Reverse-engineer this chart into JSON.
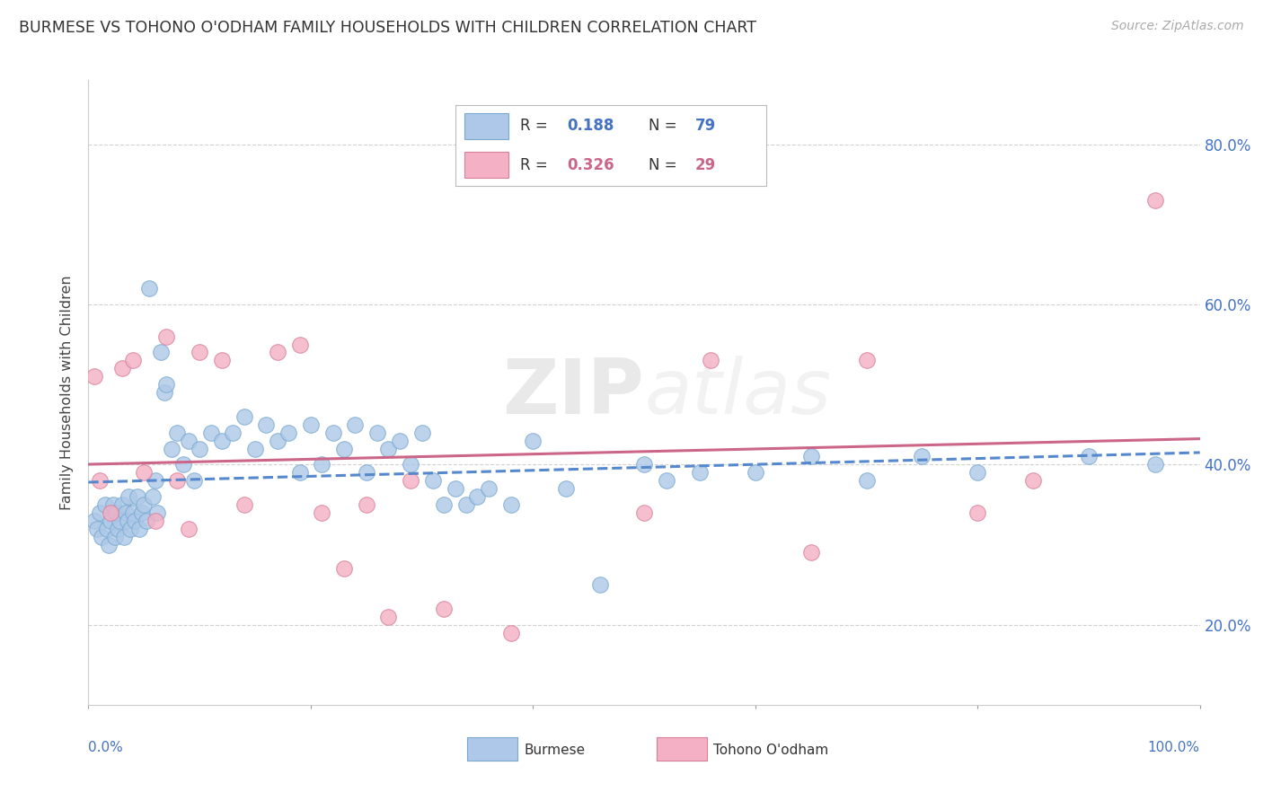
{
  "title": "BURMESE VS TOHONO O'ODHAM FAMILY HOUSEHOLDS WITH CHILDREN CORRELATION CHART",
  "source": "Source: ZipAtlas.com",
  "ylabel": "Family Households with Children",
  "xlim": [
    0.0,
    1.0
  ],
  "ylim": [
    0.1,
    0.88
  ],
  "xticks": [
    0.0,
    0.2,
    0.4,
    0.6,
    0.8,
    1.0
  ],
  "xtick_labels": [
    "0.0%",
    "",
    "",
    "",
    "",
    "100.0%"
  ],
  "yticks": [
    0.2,
    0.4,
    0.6,
    0.8
  ],
  "ytick_labels": [
    "20.0%",
    "40.0%",
    "60.0%",
    "80.0%"
  ],
  "burmese_R": "0.188",
  "burmese_N": "79",
  "tohono_R": "0.326",
  "tohono_N": "29",
  "burmese_face": "#adc8e8",
  "burmese_edge": "#7aaad0",
  "tohono_face": "#f4b0c4",
  "tohono_edge": "#d88099",
  "burmese_line": "#5588cc",
  "tohono_line": "#cc6688",
  "R_color": "#4472c4",
  "N_color": "#4472c4",
  "tohono_R_color": "#cc6688",
  "tohono_N_color": "#cc6688",
  "watermark": "ZIPAtlas",
  "burmese_x": [
    0.005,
    0.008,
    0.01,
    0.012,
    0.015,
    0.017,
    0.018,
    0.02,
    0.022,
    0.024,
    0.025,
    0.026,
    0.028,
    0.03,
    0.032,
    0.034,
    0.035,
    0.036,
    0.038,
    0.04,
    0.042,
    0.044,
    0.046,
    0.048,
    0.05,
    0.052,
    0.055,
    0.058,
    0.06,
    0.062,
    0.065,
    0.068,
    0.07,
    0.075,
    0.08,
    0.085,
    0.09,
    0.095,
    0.1,
    0.11,
    0.12,
    0.13,
    0.14,
    0.15,
    0.16,
    0.17,
    0.18,
    0.19,
    0.2,
    0.21,
    0.22,
    0.23,
    0.24,
    0.25,
    0.26,
    0.27,
    0.28,
    0.29,
    0.3,
    0.31,
    0.32,
    0.33,
    0.34,
    0.35,
    0.36,
    0.38,
    0.4,
    0.43,
    0.46,
    0.5,
    0.52,
    0.55,
    0.6,
    0.65,
    0.7,
    0.75,
    0.8,
    0.9,
    0.96
  ],
  "burmese_y": [
    0.33,
    0.32,
    0.34,
    0.31,
    0.35,
    0.32,
    0.3,
    0.33,
    0.35,
    0.31,
    0.34,
    0.32,
    0.33,
    0.35,
    0.31,
    0.34,
    0.33,
    0.36,
    0.32,
    0.34,
    0.33,
    0.36,
    0.32,
    0.34,
    0.35,
    0.33,
    0.62,
    0.36,
    0.38,
    0.34,
    0.54,
    0.49,
    0.5,
    0.42,
    0.44,
    0.4,
    0.43,
    0.38,
    0.42,
    0.44,
    0.43,
    0.44,
    0.46,
    0.42,
    0.45,
    0.43,
    0.44,
    0.39,
    0.45,
    0.4,
    0.44,
    0.42,
    0.45,
    0.39,
    0.44,
    0.42,
    0.43,
    0.4,
    0.44,
    0.38,
    0.35,
    0.37,
    0.35,
    0.36,
    0.37,
    0.35,
    0.43,
    0.37,
    0.25,
    0.4,
    0.38,
    0.39,
    0.39,
    0.41,
    0.38,
    0.41,
    0.39,
    0.41,
    0.4
  ],
  "tohono_x": [
    0.005,
    0.01,
    0.02,
    0.03,
    0.04,
    0.05,
    0.06,
    0.07,
    0.08,
    0.09,
    0.1,
    0.12,
    0.14,
    0.17,
    0.19,
    0.21,
    0.23,
    0.25,
    0.27,
    0.29,
    0.32,
    0.38,
    0.5,
    0.56,
    0.65,
    0.7,
    0.8,
    0.85,
    0.96
  ],
  "tohono_y": [
    0.51,
    0.38,
    0.34,
    0.52,
    0.53,
    0.39,
    0.33,
    0.56,
    0.38,
    0.32,
    0.54,
    0.53,
    0.35,
    0.54,
    0.55,
    0.34,
    0.27,
    0.35,
    0.21,
    0.38,
    0.22,
    0.19,
    0.34,
    0.53,
    0.29,
    0.53,
    0.34,
    0.38,
    0.73
  ]
}
